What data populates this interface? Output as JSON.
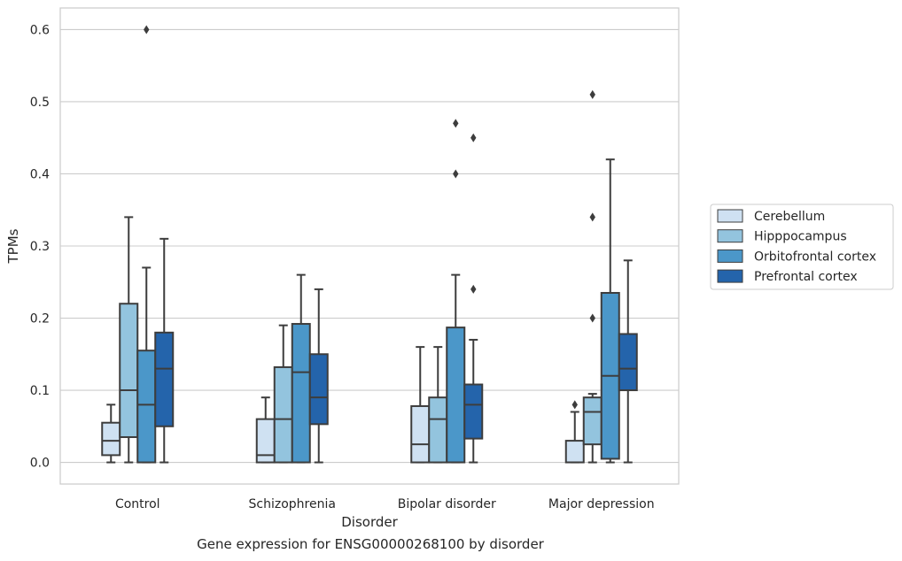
{
  "chart_data": {
    "type": "box",
    "title": "",
    "xlabel": "Disorder",
    "ylabel": "TPMs",
    "ylim": [
      -0.03,
      0.63
    ],
    "yticks": [
      0.0,
      0.1,
      0.2,
      0.3,
      0.4,
      0.5,
      0.6
    ],
    "ytick_labels": [
      "0.0",
      "0.1",
      "0.2",
      "0.3",
      "0.4",
      "0.5",
      "0.6"
    ],
    "grid": "horizontal",
    "legend_position": "right",
    "categories": [
      "Control",
      "Schizophrenia",
      "Bipolar disorder",
      "Major depression"
    ],
    "series": [
      {
        "name": "Cerebellum",
        "color": "#cfe1f2",
        "boxes": [
          {
            "whislo": 0.0,
            "q1": 0.01,
            "median": 0.03,
            "q3": 0.055,
            "whishi": 0.08,
            "fliers": []
          },
          {
            "whislo": 0.0,
            "q1": 0.0,
            "median": 0.01,
            "q3": 0.06,
            "whishi": 0.09,
            "fliers": []
          },
          {
            "whislo": 0.0,
            "q1": 0.0,
            "median": 0.025,
            "q3": 0.078,
            "whishi": 0.16,
            "fliers": []
          },
          {
            "whislo": 0.0,
            "q1": 0.0,
            "median": 0.0,
            "q3": 0.03,
            "whishi": 0.07,
            "fliers": [
              0.08
            ]
          }
        ]
      },
      {
        "name": "Hipppocampus",
        "color": "#93c4de",
        "boxes": [
          {
            "whislo": 0.0,
            "q1": 0.035,
            "median": 0.1,
            "q3": 0.22,
            "whishi": 0.34,
            "fliers": []
          },
          {
            "whislo": 0.0,
            "q1": 0.0,
            "median": 0.06,
            "q3": 0.132,
            "whishi": 0.19,
            "fliers": []
          },
          {
            "whislo": 0.0,
            "q1": 0.0,
            "median": 0.06,
            "q3": 0.09,
            "whishi": 0.16,
            "fliers": []
          },
          {
            "whislo": 0.0,
            "q1": 0.025,
            "median": 0.07,
            "q3": 0.09,
            "whishi": 0.095,
            "fliers": [
              0.2,
              0.34,
              0.51
            ]
          }
        ]
      },
      {
        "name": "Orbitofrontal cortex",
        "color": "#4b97c9",
        "boxes": [
          {
            "whislo": 0.0,
            "q1": 0.0,
            "median": 0.08,
            "q3": 0.155,
            "whishi": 0.27,
            "fliers": [
              0.6
            ]
          },
          {
            "whislo": 0.0,
            "q1": 0.0,
            "median": 0.125,
            "q3": 0.192,
            "whishi": 0.26,
            "fliers": []
          },
          {
            "whislo": 0.0,
            "q1": 0.0,
            "median": 0.0,
            "q3": 0.187,
            "whishi": 0.26,
            "fliers": [
              0.4,
              0.47
            ]
          },
          {
            "whislo": 0.0,
            "q1": 0.005,
            "median": 0.12,
            "q3": 0.235,
            "whishi": 0.42,
            "fliers": []
          }
        ]
      },
      {
        "name": "Prefrontal cortex",
        "color": "#2464ab",
        "boxes": [
          {
            "whislo": 0.0,
            "q1": 0.05,
            "median": 0.13,
            "q3": 0.18,
            "whishi": 0.31,
            "fliers": []
          },
          {
            "whislo": 0.0,
            "q1": 0.053,
            "median": 0.09,
            "q3": 0.15,
            "whishi": 0.24,
            "fliers": []
          },
          {
            "whislo": 0.0,
            "q1": 0.033,
            "median": 0.08,
            "q3": 0.108,
            "whishi": 0.17,
            "fliers": [
              0.24,
              0.45
            ]
          },
          {
            "whislo": 0.0,
            "q1": 0.1,
            "median": 0.13,
            "q3": 0.178,
            "whishi": 0.28,
            "fliers": []
          }
        ]
      }
    ],
    "caption": "Gene expression for ENSG00000268100 by disorder"
  }
}
